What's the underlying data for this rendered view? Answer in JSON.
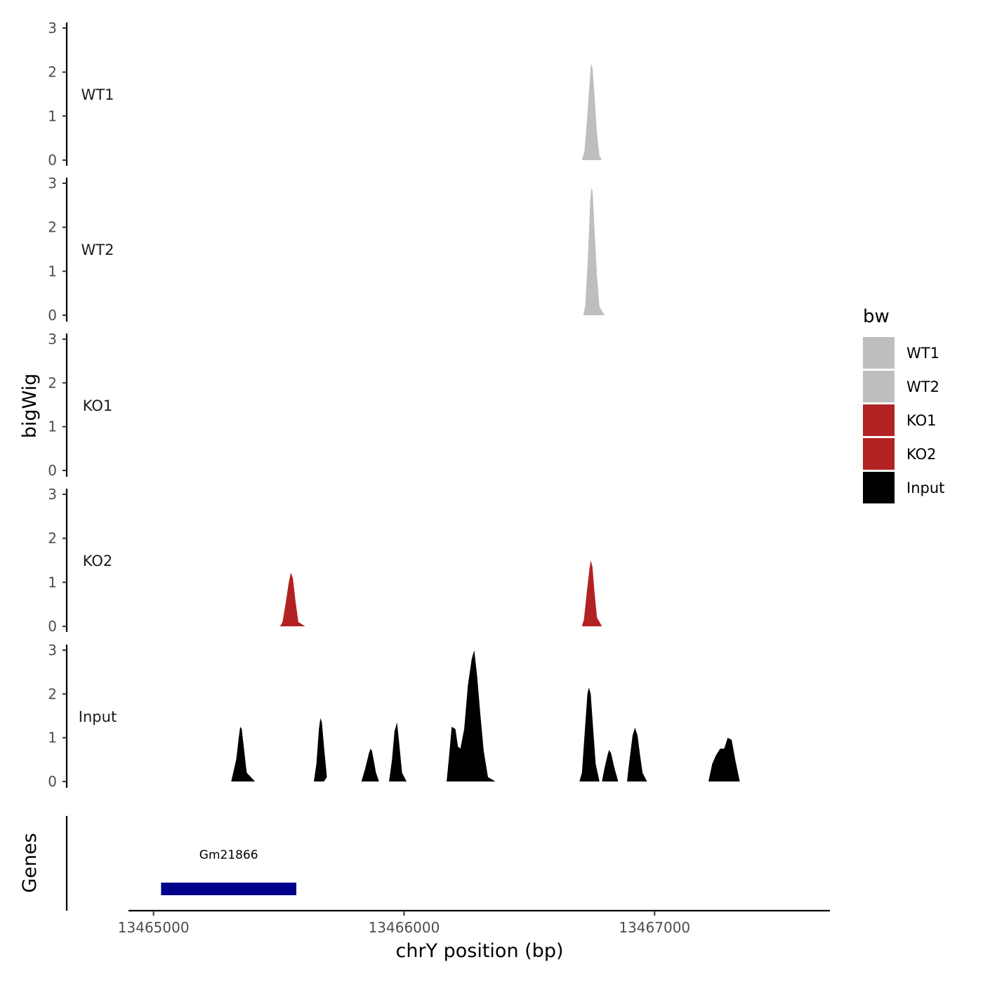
{
  "chart_data": {
    "type": "area",
    "xlabel": "chrY position (bp)",
    "ylabel": "bigWig",
    "genes_label": "Genes",
    "xlim": [
      13464900,
      13467700
    ],
    "x_ticks": [
      13465000,
      13466000,
      13467000
    ],
    "x_tick_labels": [
      "13465000",
      "13466000",
      "13467000"
    ],
    "ylim": [
      0,
      3
    ],
    "y_ticks": [
      0,
      1,
      2,
      3
    ],
    "y_tick_labels": [
      "0",
      "1",
      "2",
      "3"
    ],
    "legend": {
      "title": "bw",
      "position": "right",
      "entries": [
        {
          "label": "WT1",
          "color": "#BEBEBE"
        },
        {
          "label": "WT2",
          "color": "#BEBEBE"
        },
        {
          "label": "KO1",
          "color": "#B22222"
        },
        {
          "label": "KO2",
          "color": "#B22222"
        },
        {
          "label": "Input",
          "color": "#000000"
        }
      ]
    },
    "tracks": [
      {
        "name": "WT1",
        "color": "#BEBEBE",
        "points": [
          [
            13466710,
            0
          ],
          [
            13466720,
            0.2
          ],
          [
            13466730,
            0.9
          ],
          [
            13466740,
            1.7
          ],
          [
            13466746,
            2.2
          ],
          [
            13466752,
            2.1
          ],
          [
            13466760,
            1.5
          ],
          [
            13466770,
            0.6
          ],
          [
            13466780,
            0.1
          ],
          [
            13466790,
            0
          ]
        ]
      },
      {
        "name": "WT2",
        "color": "#BEBEBE",
        "points": [
          [
            13466715,
            0
          ],
          [
            13466723,
            0.2
          ],
          [
            13466733,
            1.2
          ],
          [
            13466743,
            2.6
          ],
          [
            13466748,
            2.9
          ],
          [
            13466753,
            2.8
          ],
          [
            13466760,
            2.0
          ],
          [
            13466770,
            0.9
          ],
          [
            13466780,
            0.2
          ],
          [
            13466800,
            0
          ]
        ]
      },
      {
        "name": "KO1",
        "color": "#B22222",
        "points": []
      },
      {
        "name": "KO2",
        "color": "#B22222",
        "points": [
          [
            13465505,
            0
          ],
          [
            13465515,
            0.1
          ],
          [
            13465528,
            0.55
          ],
          [
            13465540,
            1.0
          ],
          [
            13465548,
            1.22
          ],
          [
            13465556,
            1.1
          ],
          [
            13465566,
            0.6
          ],
          [
            13465578,
            0.1
          ],
          [
            13465605,
            0
          ],
          [
            13466710,
            0
          ],
          [
            13466718,
            0.15
          ],
          [
            13466730,
            0.8
          ],
          [
            13466740,
            1.3
          ],
          [
            13466745,
            1.5
          ],
          [
            13466752,
            1.35
          ],
          [
            13466760,
            0.8
          ],
          [
            13466770,
            0.2
          ],
          [
            13466790,
            0
          ]
        ]
      },
      {
        "name": "Input",
        "color": "#000000",
        "points": [
          [
            13465310,
            0
          ],
          [
            13465330,
            0.5
          ],
          [
            13465340,
            1.0
          ],
          [
            13465346,
            1.25
          ],
          [
            13465352,
            1.2
          ],
          [
            13465362,
            0.7
          ],
          [
            13465372,
            0.2
          ],
          [
            13465405,
            0
          ],
          [
            13465640,
            0
          ],
          [
            13465650,
            0.4
          ],
          [
            13465660,
            1.2
          ],
          [
            13465666,
            1.45
          ],
          [
            13465672,
            1.35
          ],
          [
            13465682,
            0.7
          ],
          [
            13465692,
            0.1
          ],
          [
            13465680,
            0
          ],
          [
            13465830,
            0
          ],
          [
            13465845,
            0.3
          ],
          [
            13465860,
            0.65
          ],
          [
            13465866,
            0.75
          ],
          [
            13465872,
            0.7
          ],
          [
            13465888,
            0.2
          ],
          [
            13465900,
            0
          ],
          [
            13465940,
            0
          ],
          [
            13465952,
            0.5
          ],
          [
            13465962,
            1.15
          ],
          [
            13465972,
            1.35
          ],
          [
            13465982,
            0.8
          ],
          [
            13465992,
            0.2
          ],
          [
            13466010,
            0
          ],
          [
            13466170,
            0
          ],
          [
            13466180,
            0.6
          ],
          [
            13466190,
            1.25
          ],
          [
            13466205,
            1.2
          ],
          [
            13466215,
            0.8
          ],
          [
            13466225,
            0.75
          ],
          [
            13466240,
            1.2
          ],
          [
            13466255,
            2.2
          ],
          [
            13466270,
            2.8
          ],
          [
            13466280,
            3.0
          ],
          [
            13466292,
            2.4
          ],
          [
            13466305,
            1.5
          ],
          [
            13466318,
            0.7
          ],
          [
            13466335,
            0.1
          ],
          [
            13466365,
            0
          ],
          [
            13466700,
            0
          ],
          [
            13466710,
            0.2
          ],
          [
            13466722,
            1.2
          ],
          [
            13466732,
            2.0
          ],
          [
            13466738,
            2.15
          ],
          [
            13466745,
            2.0
          ],
          [
            13466755,
            1.2
          ],
          [
            13466765,
            0.4
          ],
          [
            13466780,
            0
          ],
          [
            13466790,
            0
          ],
          [
            13466800,
            0.3
          ],
          [
            13466812,
            0.6
          ],
          [
            13466818,
            0.72
          ],
          [
            13466826,
            0.65
          ],
          [
            13466840,
            0.3
          ],
          [
            13466855,
            0
          ],
          [
            13466890,
            0
          ],
          [
            13466900,
            0.5
          ],
          [
            13466912,
            1.05
          ],
          [
            13466922,
            1.23
          ],
          [
            13466932,
            1.05
          ],
          [
            13466942,
            0.6
          ],
          [
            13466952,
            0.2
          ],
          [
            13466970,
            0
          ],
          [
            13467215,
            0
          ],
          [
            13467230,
            0.4
          ],
          [
            13467245,
            0.6
          ],
          [
            13467262,
            0.75
          ],
          [
            13467278,
            0.75
          ],
          [
            13467292,
            1.0
          ],
          [
            13467308,
            0.95
          ],
          [
            13467322,
            0.5
          ],
          [
            13467340,
            0
          ]
        ]
      }
    ],
    "genes": [
      {
        "name": "Gm21866",
        "start": 13465030,
        "end": 13465570,
        "color": "#00008B"
      }
    ]
  }
}
